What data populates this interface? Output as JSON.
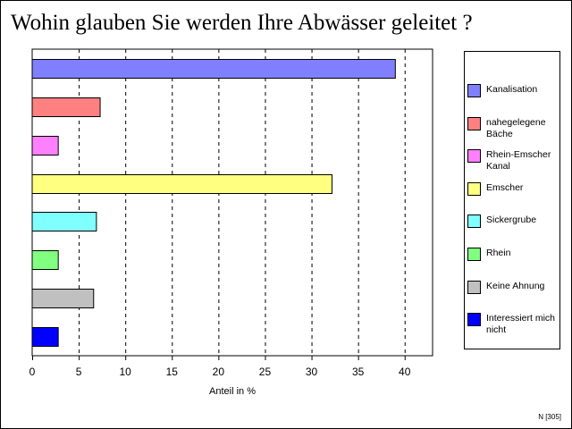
{
  "chart_data": {
    "type": "bar",
    "orientation": "horizontal",
    "title": "Wohin glauben Sie werden Ihre Abwässer geleitet ?",
    "xlabel": "Anteil in %",
    "ylabel": "",
    "xlim": [
      0,
      43
    ],
    "xticks": [
      0,
      5,
      10,
      15,
      20,
      25,
      30,
      35,
      40
    ],
    "grid": "vertical-dashed",
    "legend_position": "right",
    "categories": [
      "Kanalisation",
      "nahegelegene Bäche",
      "Rhein-Emscher Kanal",
      "Emscher",
      "Sickergrube",
      "Rhein",
      "Keine Ahnung",
      "Interessiert mich nicht"
    ],
    "values": [
      39.0,
      7.3,
      2.8,
      32.2,
      6.9,
      2.8,
      6.6,
      2.8
    ],
    "colors": [
      "#8080ff",
      "#ff8080",
      "#ff80ff",
      "#ffff80",
      "#80ffff",
      "#80ff80",
      "#c0c0c0",
      "#0000ff"
    ],
    "footnote": "N [305]"
  }
}
